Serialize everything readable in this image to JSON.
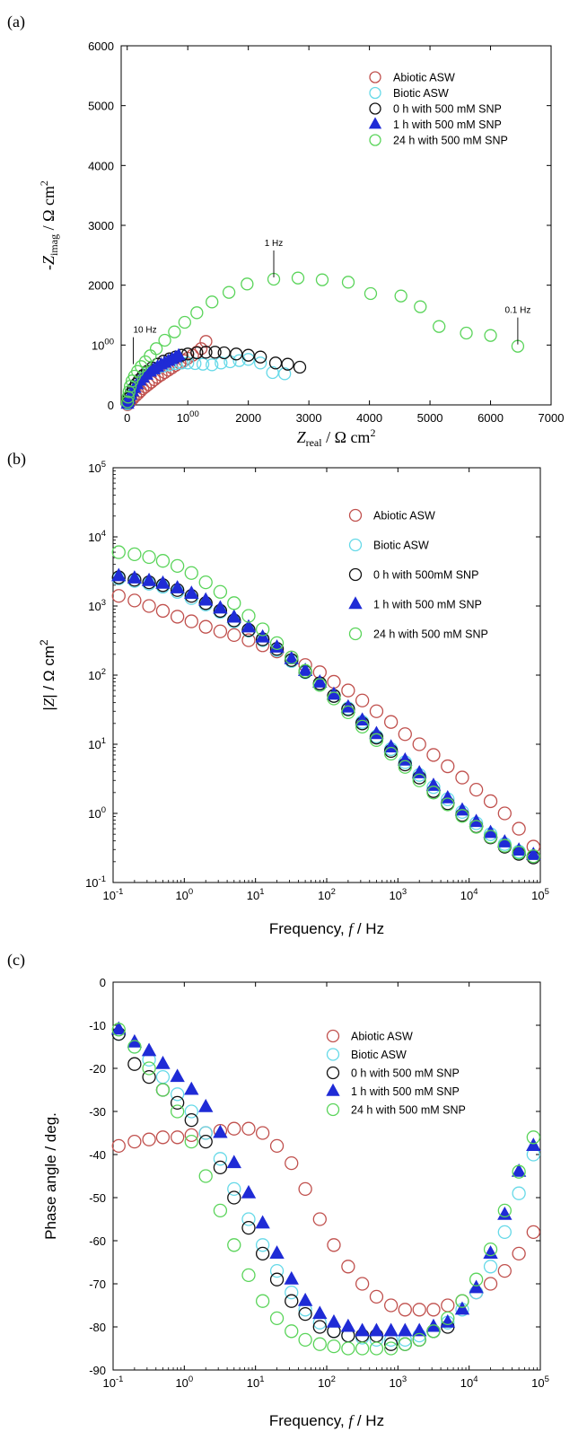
{
  "figure": {
    "panel_labels": [
      "(a)",
      "(b)",
      "(c)"
    ],
    "colors": {
      "abiotic": "#c0504d",
      "biotic": "#66d9e8",
      "zero_h": "#111111",
      "one_h": "#1f2bd6",
      "twentyfour_h": "#5ad45a"
    }
  },
  "chart_data": [
    {
      "type": "scatter",
      "panel": "(a)",
      "xlabel": "Z_real / Ω cm²",
      "ylabel": "-Z_imag / Ω cm²",
      "xlim": [
        -100,
        7000
      ],
      "ylim": [
        0,
        6000
      ],
      "xticks": [
        0,
        1000,
        2000,
        3000,
        4000,
        5000,
        6000,
        7000
      ],
      "yticks": [
        0,
        1000,
        2000,
        3000,
        4000,
        5000,
        6000
      ],
      "xtick_labels": [
        "0",
        "1000",
        "2000",
        "3000",
        "4000",
        "5000",
        "6000",
        "7000"
      ],
      "ytick_labels": [
        "0",
        "1000",
        "2000",
        "3000",
        "4000",
        "5000",
        "6000"
      ],
      "legend_position": "top-right",
      "annotations": [
        {
          "text": "10 Hz",
          "x": 100,
          "y": 650
        },
        {
          "text": "1 Hz",
          "x": 2420,
          "y": 2100
        },
        {
          "text": "0.1 Hz",
          "x": 6450,
          "y": 980
        }
      ],
      "series": [
        {
          "name": "Abiotic ASW",
          "marker": "circle",
          "x": [
            5,
            20,
            40,
            70,
            100,
            140,
            180,
            220,
            260,
            300,
            350,
            400,
            450,
            500,
            560,
            620,
            680,
            740,
            800,
            870,
            940,
            1000,
            1080,
            1150,
            1220,
            1300
          ],
          "y": [
            5,
            20,
            45,
            80,
            110,
            150,
            190,
            230,
            270,
            300,
            340,
            380,
            420,
            460,
            500,
            540,
            580,
            620,
            660,
            700,
            740,
            780,
            830,
            880,
            940,
            1060
          ]
        },
        {
          "name": "Biotic ASW",
          "marker": "circle",
          "x": [
            5,
            15,
            30,
            50,
            80,
            110,
            150,
            200,
            260,
            330,
            410,
            500,
            600,
            700,
            800,
            900,
            1000,
            1120,
            1250,
            1400,
            1550,
            1700,
            1850,
            2000,
            2200,
            2400,
            2600
          ],
          "y": [
            20,
            60,
            110,
            170,
            230,
            290,
            350,
            410,
            470,
            530,
            580,
            620,
            650,
            670,
            690,
            700,
            700,
            690,
            680,
            670,
            700,
            720,
            740,
            760,
            700,
            540,
            520
          ]
        },
        {
          "name": "0 h with 500 mM SNP",
          "marker": "circle",
          "x": [
            10,
            30,
            60,
            100,
            150,
            200,
            260,
            330,
            410,
            500,
            600,
            700,
            800,
            900,
            1000,
            1150,
            1300,
            1450,
            1600,
            1800,
            2000,
            2200,
            2450,
            2650,
            2850
          ],
          "y": [
            40,
            110,
            190,
            270,
            350,
            420,
            490,
            560,
            620,
            680,
            730,
            770,
            800,
            830,
            850,
            870,
            880,
            880,
            870,
            850,
            830,
            800,
            700,
            680,
            630
          ]
        },
        {
          "name": "1 h with 500 mM SNP",
          "marker": "triangle",
          "x": [
            5,
            15,
            30,
            55,
            85,
            120,
            160,
            210,
            260,
            320,
            380,
            440,
            500,
            560,
            620,
            680,
            740,
            800,
            850
          ],
          "y": [
            15,
            50,
            100,
            160,
            220,
            280,
            340,
            400,
            450,
            500,
            550,
            590,
            630,
            670,
            700,
            730,
            760,
            790,
            820
          ]
        },
        {
          "name": "24 h with 500 mM SNP",
          "marker": "circle",
          "x": [
            5,
            15,
            30,
            50,
            80,
            120,
            170,
            230,
            300,
            380,
            480,
            620,
            780,
            950,
            1150,
            1400,
            1680,
            1980,
            2420,
            2820,
            3220,
            3650,
            4020,
            4520,
            4840,
            5150,
            5600,
            6000,
            6450
          ],
          "y": [
            50,
            130,
            220,
            310,
            400,
            480,
            560,
            640,
            720,
            820,
            940,
            1080,
            1220,
            1380,
            1540,
            1720,
            1880,
            2020,
            2100,
            2120,
            2090,
            2050,
            1860,
            1820,
            1640,
            1310,
            1200,
            1160,
            980
          ]
        }
      ]
    },
    {
      "type": "scatter",
      "panel": "(b)",
      "xlabel": "Frequency, f / Hz",
      "ylabel": "|Z| / Ω cm²",
      "xscale": "log",
      "yscale": "log",
      "xlim": [
        0.1,
        100000
      ],
      "ylim": [
        0.1,
        100000
      ],
      "xtick_labels": [
        "10-1",
        "100",
        "101",
        "102",
        "103",
        "104",
        "105"
      ],
      "ytick_labels": [
        "10-1",
        "100",
        "101",
        "102",
        "103",
        "104",
        "105"
      ],
      "legend_position": "top-right",
      "series": [
        {
          "name": "Abiotic ASW",
          "marker": "circle",
          "x": [
            0.12,
            0.2,
            0.32,
            0.5,
            0.8,
            1.26,
            2,
            3.2,
            5,
            8,
            12.6,
            20,
            32,
            50,
            80,
            126,
            200,
            316,
            500,
            800,
            1260,
            2000,
            3160,
            5000,
            8000,
            12600,
            20000,
            31600,
            50000,
            80000
          ],
          "y": [
            1400,
            1200,
            1000,
            850,
            700,
            600,
            500,
            430,
            380,
            320,
            270,
            220,
            180,
            140,
            110,
            80,
            60,
            43,
            30,
            21,
            14,
            10,
            7,
            4.8,
            3.3,
            2.2,
            1.5,
            1.0,
            0.6,
            0.33
          ]
        },
        {
          "name": "Biotic ASW",
          "marker": "circle",
          "x": [
            0.12,
            0.2,
            0.32,
            0.5,
            0.8,
            1.26,
            2,
            3.2,
            5,
            8,
            12.6,
            20,
            32,
            50,
            80,
            126,
            200,
            316,
            500,
            800,
            1260,
            2000,
            3160,
            5000,
            8000,
            12600,
            20000,
            31600,
            50000,
            80000
          ],
          "y": [
            2500,
            2300,
            2100,
            1900,
            1600,
            1300,
            1050,
            820,
            600,
            440,
            320,
            230,
            160,
            110,
            75,
            50,
            33,
            21,
            13,
            8.5,
            5.5,
            3.6,
            2.4,
            1.6,
            1.05,
            0.72,
            0.5,
            0.36,
            0.28,
            0.24
          ]
        },
        {
          "name": "0 h with 500mM SNP",
          "marker": "circle",
          "x": [
            0.12,
            0.2,
            0.32,
            0.5,
            0.8,
            1.26,
            2,
            3.2,
            5,
            8,
            12.6,
            20,
            32,
            50,
            80,
            126,
            200,
            316,
            500,
            800,
            1260,
            2000,
            3160,
            5000,
            8000,
            12600,
            20000,
            31600,
            50000,
            80000
          ],
          "y": [
            2600,
            2400,
            2200,
            2000,
            1700,
            1400,
            1100,
            850,
            620,
            450,
            330,
            240,
            165,
            112,
            76,
            50,
            32,
            20,
            12.5,
            8,
            5.1,
            3.3,
            2.1,
            1.4,
            0.95,
            0.65,
            0.45,
            0.33,
            0.26,
            0.23
          ]
        },
        {
          "name": "1 h with 500 mM SNP",
          "marker": "triangle",
          "x": [
            0.12,
            0.2,
            0.32,
            0.5,
            0.8,
            1.26,
            2,
            3.2,
            5,
            8,
            12.6,
            20,
            32,
            50,
            80,
            126,
            200,
            316,
            500,
            800,
            1260,
            2000,
            3160,
            5000,
            8000,
            12600,
            20000,
            31600,
            50000,
            80000
          ],
          "y": [
            2700,
            2500,
            2300,
            2100,
            1800,
            1500,
            1200,
            920,
            680,
            490,
            350,
            250,
            170,
            115,
            78,
            52,
            34,
            22,
            14,
            9,
            5.8,
            3.8,
            2.5,
            1.65,
            1.1,
            0.75,
            0.52,
            0.38,
            0.29,
            0.25
          ]
        },
        {
          "name": "24 h with 500 mM SNP",
          "marker": "circle",
          "x": [
            0.12,
            0.2,
            0.32,
            0.5,
            0.8,
            1.26,
            2,
            3.2,
            5,
            8,
            12.6,
            20,
            32,
            50,
            80,
            126,
            200,
            316,
            500,
            800,
            1260,
            2000,
            3160,
            5000,
            8000,
            12600,
            20000,
            31600,
            50000,
            80000
          ],
          "y": [
            6000,
            5600,
            5100,
            4500,
            3800,
            3000,
            2200,
            1600,
            1100,
            720,
            460,
            290,
            180,
            115,
            72,
            46,
            29,
            18,
            11.5,
            7.3,
            4.7,
            3.0,
            2.0,
            1.35,
            0.92,
            0.64,
            0.46,
            0.34,
            0.27,
            0.24
          ]
        }
      ]
    },
    {
      "type": "scatter",
      "panel": "(c)",
      "xlabel": "Frequency, f / Hz",
      "ylabel": "Phase angle / deg.",
      "xscale": "log",
      "xlim": [
        0.1,
        100000
      ],
      "ylim": [
        -90,
        0
      ],
      "xtick_labels": [
        "10-1",
        "100",
        "101",
        "102",
        "103",
        "104",
        "105"
      ],
      "ytick_labels": [
        "0",
        "-10",
        "-20",
        "-30",
        "-40",
        "-50",
        "-60",
        "-70",
        "-80",
        "-90"
      ],
      "yticks": [
        0,
        -10,
        -20,
        -30,
        -40,
        -50,
        -60,
        -70,
        -80,
        -90
      ],
      "legend_position": "top-right",
      "series": [
        {
          "name": "Abiotic ASW",
          "marker": "circle",
          "x": [
            0.12,
            0.2,
            0.32,
            0.5,
            0.8,
            1.26,
            2,
            3.2,
            5,
            8,
            12.6,
            20,
            32,
            50,
            80,
            126,
            200,
            316,
            500,
            800,
            1260,
            2000,
            3160,
            5000,
            8000,
            12600,
            20000,
            31600,
            50000,
            80000
          ],
          "y": [
            -38,
            -37,
            -36.5,
            -36,
            -36,
            -35.5,
            -35,
            -34.5,
            -34,
            -34,
            -35,
            -38,
            -42,
            -48,
            -55,
            -61,
            -66,
            -70,
            -73,
            -75,
            -76,
            -76,
            -76,
            -75,
            -74,
            -72,
            -70,
            -67,
            -63,
            -58
          ]
        },
        {
          "name": "Biotic ASW",
          "marker": "circle",
          "x": [
            0.12,
            0.2,
            0.32,
            0.5,
            0.8,
            1.26,
            2,
            3.2,
            5,
            8,
            12.6,
            20,
            32,
            50,
            80,
            126,
            200,
            316,
            500,
            800,
            1260,
            2000,
            3160,
            5000,
            8000,
            12600,
            20000,
            31600,
            50000,
            80000
          ],
          "y": [
            -12,
            -15,
            -18,
            -22,
            -26,
            -30,
            -35,
            -41,
            -48,
            -55,
            -61,
            -67,
            -72,
            -76,
            -79,
            -81,
            -82,
            -82.5,
            -83,
            -83,
            -83,
            -82,
            -81,
            -79,
            -76,
            -72,
            -66,
            -58,
            -49,
            -40
          ]
        },
        {
          "name": "0 h with 500 mM SNP",
          "marker": "circle",
          "x": [
            0.12,
            0.2,
            0.32,
            0.5,
            0.8,
            1.26,
            2,
            3.2,
            5,
            8,
            12.6,
            20,
            32,
            50,
            80,
            126,
            200,
            316,
            500,
            800,
            1260,
            2000,
            3160,
            5000
          ],
          "y": [
            -12,
            -19,
            -22,
            -25,
            -28,
            -32,
            -37,
            -43,
            -50,
            -57,
            -63,
            -69,
            -74,
            -77,
            -80,
            -81,
            -82,
            -82,
            -82,
            -84,
            -84,
            -83,
            -81,
            -80
          ]
        },
        {
          "name": "1 h with 500 mM SNP",
          "marker": "triangle",
          "x": [
            0.12,
            0.2,
            0.32,
            0.5,
            0.8,
            1.26,
            2,
            3.2,
            5,
            8,
            12.6,
            20,
            32,
            50,
            80,
            126,
            200,
            316,
            500,
            800,
            1260,
            2000,
            3160,
            5000,
            8000,
            12600,
            20000,
            31600,
            50000,
            80000
          ],
          "y": [
            -11,
            -14,
            -16,
            -19,
            -22,
            -25,
            -29,
            -35,
            -42,
            -49,
            -56,
            -63,
            -69,
            -74,
            -77,
            -79,
            -80,
            -81,
            -81,
            -81,
            -81,
            -81,
            -80,
            -79,
            -76,
            -71,
            -63,
            -54,
            -44,
            -38
          ]
        },
        {
          "name": "24 h with 500 mM SNP",
          "marker": "circle",
          "x": [
            0.12,
            0.2,
            0.32,
            0.5,
            0.8,
            1.26,
            2,
            3.2,
            5,
            8,
            12.6,
            20,
            32,
            50,
            80,
            126,
            200,
            316,
            500,
            800,
            1260,
            2000,
            3160,
            5000,
            8000,
            12600,
            20000,
            31600,
            50000,
            80000
          ],
          "y": [
            -11,
            -15,
            -20,
            -25,
            -30,
            -37,
            -45,
            -53,
            -61,
            -68,
            -74,
            -78,
            -81,
            -83,
            -84,
            -84.5,
            -85,
            -85,
            -85,
            -85,
            -84,
            -83,
            -81,
            -78,
            -74,
            -69,
            -62,
            -53,
            -44,
            -36
          ]
        }
      ]
    }
  ]
}
